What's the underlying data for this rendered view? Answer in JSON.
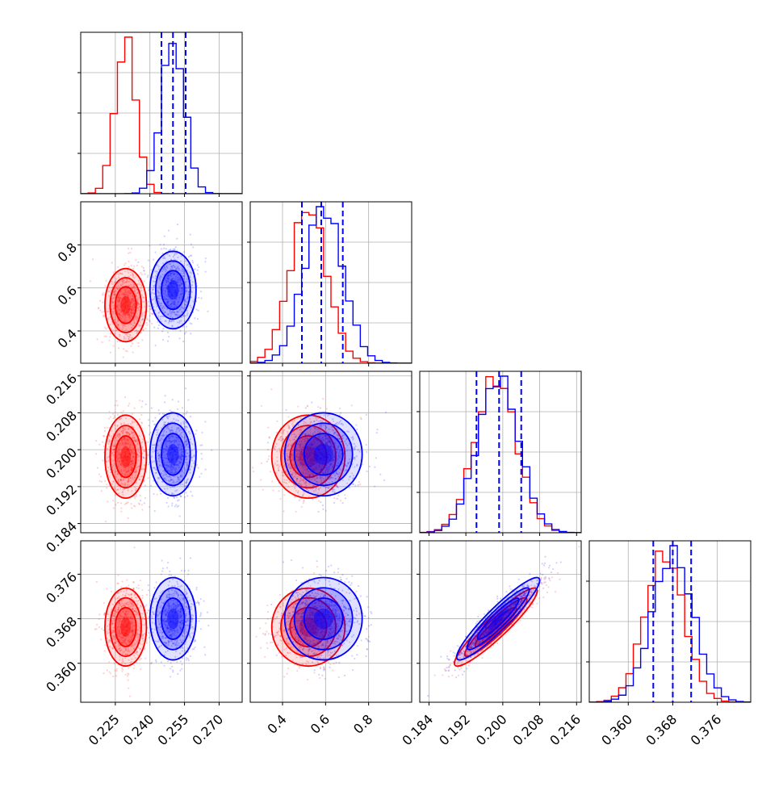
{
  "chart_data": {
    "type": "corner",
    "parameters": [
      {
        "range": [
          0.21,
          0.28
        ],
        "ticks": [
          0.225,
          0.24,
          0.255,
          0.27
        ],
        "tick_labels": [
          "0.225",
          "0.240",
          "0.255",
          "0.270"
        ]
      },
      {
        "range": [
          0.25,
          1.0
        ],
        "ticks": [
          0.4,
          0.6,
          0.8
        ],
        "tick_labels": [
          "0.4",
          "0.6",
          "0.8"
        ]
      },
      {
        "range": [
          0.182,
          0.217
        ],
        "ticks": [
          0.184,
          0.192,
          0.2,
          0.208,
          0.216
        ],
        "tick_labels": [
          "0.184",
          "0.192",
          "0.200",
          "0.208",
          "0.216"
        ]
      },
      {
        "range": [
          0.353,
          0.382
        ],
        "ticks": [
          0.36,
          0.368,
          0.376
        ],
        "tick_labels": [
          "0.360",
          "0.368",
          "0.376"
        ]
      }
    ],
    "series": [
      {
        "color": "#ff0000",
        "means": [
          0.2295,
          0.52,
          0.1985,
          0.3665
        ],
        "sds": [
          0.0045,
          0.085,
          0.0045,
          0.0035
        ]
      },
      {
        "color": "#0000ff",
        "means": [
          0.25,
          0.59,
          0.199,
          0.368
        ],
        "sds": [
          0.005,
          0.09,
          0.0045,
          0.0037
        ]
      }
    ],
    "correlations": [
      [
        2,
        3,
        0.93
      ]
    ],
    "quantile_lines": {
      "color": "#0000ff",
      "style": "dashed",
      "values": [
        [
          0.245,
          0.25,
          0.2555
        ],
        [
          0.49,
          0.58,
          0.68
        ],
        [
          0.1943,
          0.1992,
          0.204
        ],
        [
          0.3645,
          0.368,
          0.3713
        ]
      ]
    },
    "grid": true
  }
}
